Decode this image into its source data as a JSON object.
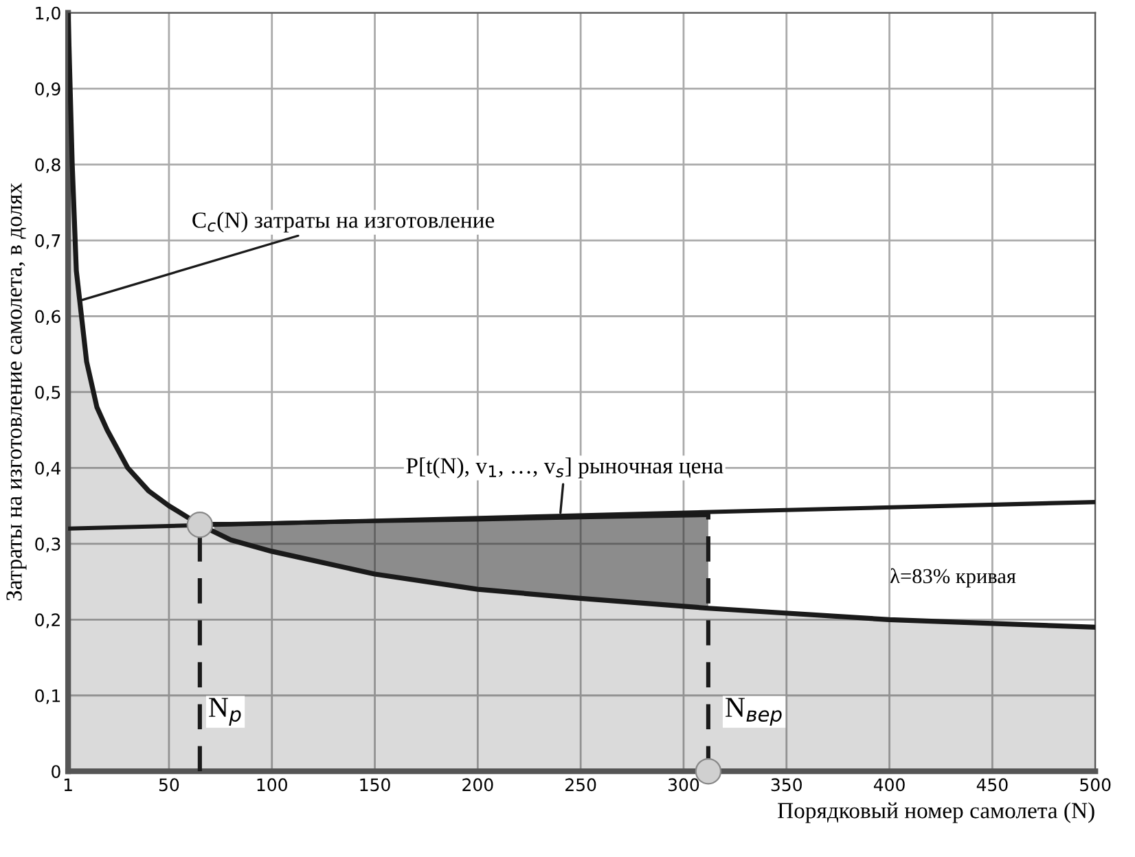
{
  "chart_data": {
    "type": "line",
    "xlabel": "Порядковый номер самолета (N)",
    "ylabel": "Затраты на изготовление самолета, в долях",
    "xlim": [
      1,
      500
    ],
    "xticks": [
      1,
      50,
      100,
      150,
      200,
      250,
      300,
      350,
      400,
      450,
      500
    ],
    "ylim": [
      0,
      1.0
    ],
    "yticks": [
      0,
      {
        "value": 0.1,
        "label": "0,1"
      },
      {
        "value": 0.2,
        "label": "0,2"
      },
      {
        "value": 0.3,
        "label": "0,3"
      },
      {
        "value": 0.4,
        "label": "0,4"
      },
      {
        "value": 0.5,
        "label": "0,5"
      },
      {
        "value": 0.6,
        "label": "0,6"
      },
      {
        "value": 0.7,
        "label": "0,7"
      },
      {
        "value": 0.8,
        "label": "0,8"
      },
      {
        "value": 0.9,
        "label": "0,9"
      },
      {
        "value": 1.0,
        "label": "1,0"
      }
    ],
    "grid": true,
    "legend": false,
    "series": [
      {
        "type": "area",
        "color": "#1a1a1a",
        "x": [
          1,
          3,
          5,
          10,
          15,
          20,
          30,
          40,
          50,
          65,
          80,
          100,
          150,
          200,
          250,
          312,
          400,
          500
        ],
        "values": [
          1.0,
          0.8,
          0.66,
          0.54,
          0.48,
          0.45,
          0.4,
          0.37,
          0.35,
          0.325,
          0.305,
          0.29,
          0.26,
          0.24,
          0.228,
          0.215,
          0.2,
          0.19
        ]
      },
      {
        "type": "line",
        "color": "#1a1a1a",
        "x": [
          72,
          80,
          100,
          150,
          200,
          250,
          312
        ],
        "values": [
          0.326,
          0.326,
          0.327,
          0.33,
          0.332,
          0.335,
          0.338
        ],
        "lower": [
          0.316,
          0.305,
          0.29,
          0.26,
          0.24,
          0.228,
          0.215
        ],
        "upper": [
          0.326,
          0.326,
          0.327,
          0.33,
          0.332,
          0.335,
          0.338
        ]
      },
      {
        "color": "#1a1a1a",
        "x": [
          1,
          500
        ],
        "values": [
          0.32,
          0.355
        ]
      },
      {
        "color": "#1a1a1a",
        "line_style": "dashed",
        "x": [
          65,
          65
        ],
        "values": [
          0,
          0.325
        ]
      },
      {
        "color": "#1a1a1a",
        "line_style": "dashed",
        "x": [
          312,
          312
        ],
        "values": [
          0,
          0.338
        ]
      },
      {
        "type": "scatter",
        "color": "#d0d0d0",
        "marker": "circle",
        "x": [
          65,
          312
        ],
        "values": [
          0.325,
          0
        ]
      }
    ],
    "annotations": [
      {
        "text": "C$_{c}$(N) затраты на изготовление",
        "x": 6,
        "y": 0.62
      },
      {
        "text": "P[t(N), v$_{1}$, …, v$_{s}$] рыночная цена",
        "x": 240,
        "y": 0.336
      },
      "λ=83% кривая",
      {
        "text": "N$_{р}$",
        "x": 65,
        "y": 0.0
      },
      {
        "text": "N$_{вер}$",
        "x": 312,
        "y": 0.0
      }
    ]
  }
}
